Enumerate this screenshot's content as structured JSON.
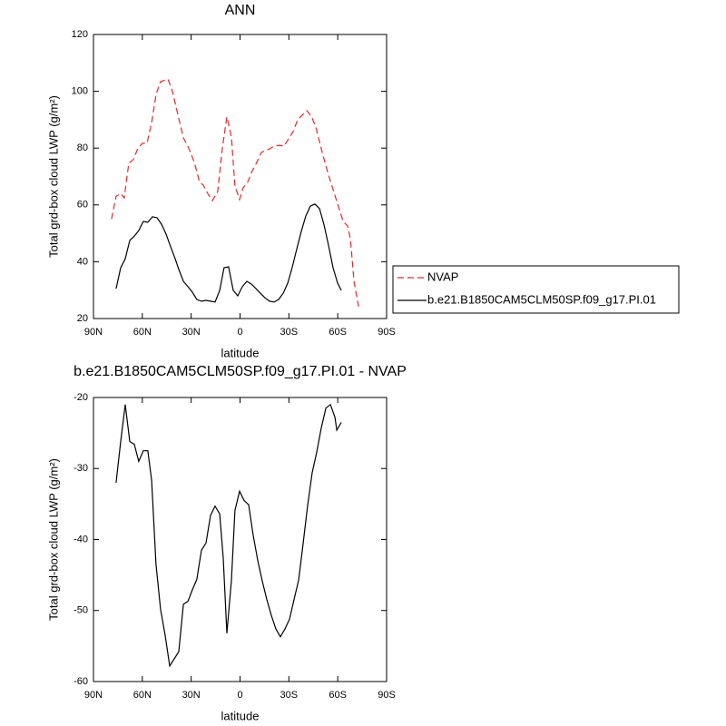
{
  "chart_data": [
    {
      "type": "line",
      "title": "ANN",
      "xlabel": "latitude",
      "ylabel": "Total grd-box cloud LWP (g/m²)",
      "xlim": [
        90,
        -90
      ],
      "xticks": [
        {
          "value": 90,
          "label": "90N"
        },
        {
          "value": 60,
          "label": "60N"
        },
        {
          "value": 30,
          "label": "30N"
        },
        0,
        {
          "value": -30,
          "label": "30S"
        },
        {
          "value": -60,
          "label": "60S"
        },
        {
          "value": -90,
          "label": "90S"
        }
      ],
      "ylim": [
        20,
        120
      ],
      "yticks": [
        20,
        40,
        60,
        80,
        100,
        120
      ],
      "legend": "right",
      "series": [
        {
          "name": "NVAP",
          "color": "#e8282c",
          "dashed": true,
          "x": [
            78.9,
            76.1,
            73.3,
            71.1,
            68.3,
            65.5,
            62.7,
            59.9,
            57.1,
            54.3,
            51.5,
            48.8,
            44.3,
            41.5,
            38.7,
            34.8,
            31.5,
            28.1,
            24.8,
            22.6,
            19.8,
            17.0,
            13.7,
            10.9,
            8.1,
            5.3,
            3.1,
            0.3,
            -1.9,
            -4.7,
            -7.5,
            -10.3,
            -13.1,
            -18.1,
            -20.9,
            -24.2,
            -27.0,
            -29.8,
            -32.6,
            -35.4,
            -38.2,
            -41.0,
            -43.8,
            -46.6,
            -49.3,
            -52.1,
            -54.9,
            -57.7,
            -60.5,
            -63.3,
            -66.1,
            -67.8,
            -70.0,
            -72.8
          ],
          "values": [
            55,
            63,
            64,
            62.5,
            74.6,
            76,
            80,
            81.7,
            81.7,
            89,
            99,
            103.4,
            104.3,
            100,
            93,
            83.6,
            80,
            75,
            68,
            67,
            64,
            61.5,
            64.7,
            79.7,
            91,
            84,
            66.6,
            61.9,
            66,
            68,
            72,
            75,
            78.5,
            79.7,
            80.7,
            81,
            80.7,
            83.3,
            85.8,
            90,
            91.6,
            93.2,
            91.2,
            87.4,
            81,
            75,
            69.5,
            64.4,
            59.3,
            54.2,
            52.6,
            47.8,
            33,
            24.2
          ]
        },
        {
          "name": "b.e21.B1850CAM5CLM50SP.f09_g17.PI.01",
          "color": "#000000",
          "dashed": false,
          "x": [
            76.1,
            73.3,
            70.5,
            67.7,
            64.9,
            62.2,
            59.4,
            56.6,
            53.8,
            51.0,
            48.2,
            45.4,
            42.6,
            39.8,
            37.6,
            34.8,
            32.0,
            29.3,
            26.5,
            23.7,
            20.9,
            18.1,
            15.3,
            12.5,
            9.8,
            7.0,
            4.2,
            1.4,
            -1.4,
            -4.2,
            -7.0,
            -9.8,
            -12.5,
            -15.3,
            -18.1,
            -20.9,
            -23.7,
            -26.5,
            -29.3,
            -32.0,
            -34.8,
            -37.6,
            -40.4,
            -43.2,
            -46.0,
            -48.8,
            -51.6,
            -54.3,
            -57.1,
            -59.9,
            -62.2
          ],
          "values": [
            30.5,
            37.9,
            41,
            47.5,
            49,
            51,
            54.2,
            53.9,
            55.8,
            55.5,
            53.2,
            49.7,
            45.2,
            41,
            37.3,
            33.1,
            31.2,
            29.3,
            26.7,
            26.1,
            26.4,
            26.1,
            25.8,
            29.9,
            37.9,
            38.2,
            29.9,
            28,
            31.2,
            33.1,
            32.1,
            30.5,
            28.9,
            27.3,
            26.1,
            25.8,
            26.7,
            28.9,
            32.5,
            37.9,
            44.3,
            50.7,
            56.1,
            59.6,
            60.3,
            58.7,
            52.9,
            45.9,
            37.9,
            32.5,
            29.9
          ]
        }
      ]
    },
    {
      "type": "line",
      "title": "b.e21.B1850CAM5CLM50SP.f09_g17.PI.01 - NVAP",
      "xlabel": "latitude",
      "ylabel": "Total grd-box cloud LWP (g/m²)",
      "xlim": [
        90,
        -90
      ],
      "xticks": [
        {
          "value": 90,
          "label": "90N"
        },
        {
          "value": 60,
          "label": "60N"
        },
        {
          "value": 30,
          "label": "30N"
        },
        0,
        {
          "value": -30,
          "label": "30S"
        },
        {
          "value": -60,
          "label": "60S"
        },
        {
          "value": -90,
          "label": "90S"
        }
      ],
      "ylim": [
        -60,
        -20
      ],
      "yticks": [
        -60,
        -50,
        -40,
        -30,
        -20
      ],
      "series": [
        {
          "color": "#000000",
          "dashed": false,
          "x": [
            76.1,
            73.3,
            70.5,
            67.7,
            64.9,
            62.2,
            59.4,
            56.6,
            54.3,
            51.6,
            48.8,
            46.0,
            43.2,
            40.4,
            37.6,
            34.8,
            32.0,
            29.3,
            26.5,
            23.7,
            20.9,
            18.1,
            15.3,
            12.5,
            10.3,
            8.1,
            5.3,
            3.1,
            0.3,
            -2.5,
            -5.3,
            -8.1,
            -10.9,
            -13.7,
            -16.4,
            -19.2,
            -22.0,
            -24.8,
            -27.6,
            -30.4,
            -33.2,
            -36.0,
            -38.7,
            -41.5,
            -44.3,
            -47.1,
            -49.9,
            -52.7,
            -55.5,
            -58.3,
            -59.4,
            -62.2
          ],
          "values": [
            -32,
            -26.2,
            -21,
            -26.2,
            -26.6,
            -29,
            -27.5,
            -27.5,
            -31.7,
            -43.5,
            -49.8,
            -53.5,
            -57.8,
            -56.8,
            -55.8,
            -49.1,
            -48.7,
            -47.1,
            -45.6,
            -41.5,
            -40.5,
            -36.6,
            -35.3,
            -36.4,
            -42.6,
            -53.2,
            -45.8,
            -35.9,
            -33.2,
            -34.5,
            -35.1,
            -39.4,
            -43,
            -45.9,
            -48.4,
            -50.7,
            -52.6,
            -53.7,
            -52.6,
            -51.2,
            -48.4,
            -45.7,
            -40.7,
            -35.2,
            -30.6,
            -27.7,
            -24.3,
            -21.5,
            -21,
            -22.8,
            -24.6,
            -23.5
          ]
        }
      ]
    }
  ]
}
